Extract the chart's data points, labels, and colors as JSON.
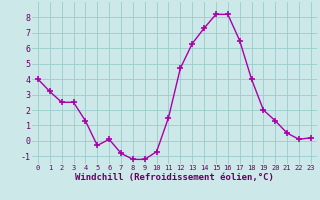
{
  "x": [
    0,
    1,
    2,
    3,
    4,
    5,
    6,
    7,
    8,
    9,
    10,
    11,
    12,
    13,
    14,
    15,
    16,
    17,
    18,
    19,
    20,
    21,
    22,
    23
  ],
  "y": [
    4.0,
    3.2,
    2.5,
    2.5,
    1.3,
    -0.3,
    0.1,
    -0.8,
    -1.2,
    -1.2,
    -0.7,
    1.5,
    4.7,
    6.3,
    7.3,
    8.2,
    8.2,
    6.5,
    4.0,
    2.0,
    1.3,
    0.5,
    0.1,
    0.2
  ],
  "xlabel": "Windchill (Refroidissement éolien,°C)",
  "ylim": [
    -1.5,
    9.0
  ],
  "xlim": [
    -0.5,
    23.5
  ],
  "yticks": [
    -1,
    0,
    1,
    2,
    3,
    4,
    5,
    6,
    7,
    8
  ],
  "xticks": [
    0,
    1,
    2,
    3,
    4,
    5,
    6,
    7,
    8,
    9,
    10,
    11,
    12,
    13,
    14,
    15,
    16,
    17,
    18,
    19,
    20,
    21,
    22,
    23
  ],
  "line_color": "#aa00aa",
  "marker_color": "#aa00aa",
  "bg_color": "#cce8e8",
  "grid_color": "#99cccc",
  "tick_color": "#660066",
  "label_color": "#660066"
}
